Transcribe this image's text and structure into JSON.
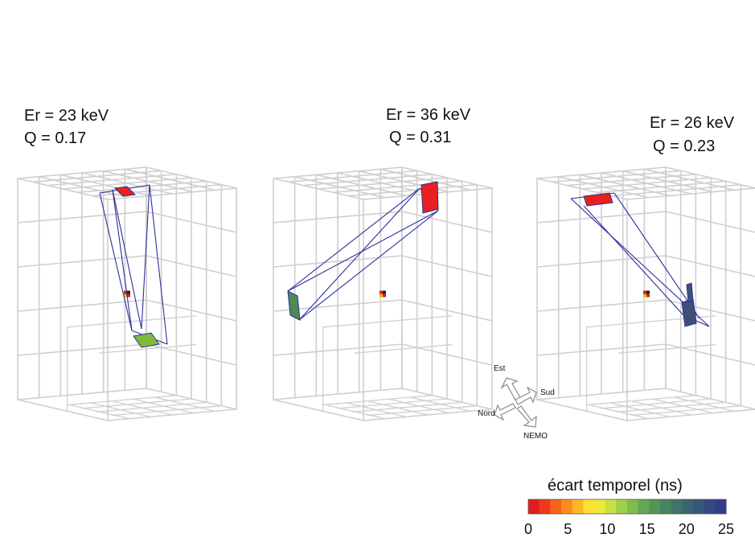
{
  "events": [
    {
      "energy": "Er = 23 keV",
      "quench": "Q = 0.17",
      "hit_a_color": "#e8201e",
      "hit_b_color": "#7dbb3a"
    },
    {
      "energy": "Er = 36 keV",
      "quench": "Q = 0.31",
      "hit_a_color": "#e8201e",
      "hit_b_color": "#4e8a55"
    },
    {
      "energy": "Er = 26 keV",
      "quench": "Q = 0.23",
      "hit_a_color": "#e8201e",
      "hit_b_color": "#3f4f78"
    }
  ],
  "compass": {
    "north": "Nord",
    "east": "Est",
    "south": "Sud",
    "nemo": "NEMO"
  },
  "colorbar": {
    "title": "écart temporel (ns)",
    "ticks": [
      "0",
      "5",
      "10",
      "15",
      "20",
      "25"
    ],
    "colors": [
      "#e01e1e",
      "#ee3a1b",
      "#f7651a",
      "#fb8c1c",
      "#fdb626",
      "#fde032",
      "#ecea3c",
      "#c9df44",
      "#9fd047",
      "#7cbe4c",
      "#63a852",
      "#529557",
      "#468460",
      "#3f7469",
      "#3a6471",
      "#36557a",
      "#344883",
      "#333c8b"
    ]
  },
  "track_color": "#2b2f9a",
  "detector_color": "#cfcfcf"
}
